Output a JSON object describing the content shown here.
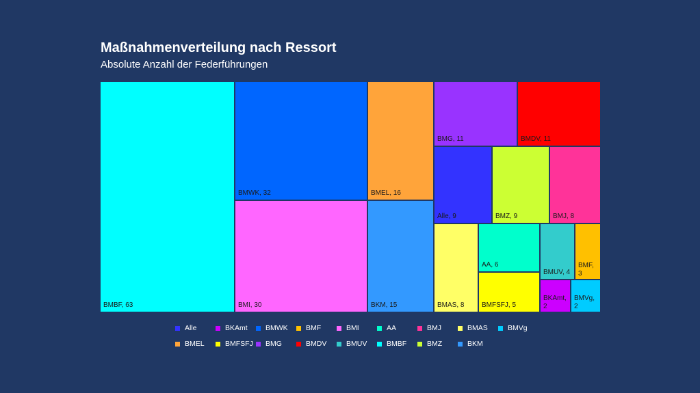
{
  "chart_data": {
    "type": "treemap",
    "title": "Maßnahmenverteilung nach Ressort",
    "subtitle": "Absolute Anzahl der Federführungen",
    "items": [
      {
        "name": "BMBF",
        "value": 63,
        "color": "#00FFFF"
      },
      {
        "name": "BMWK",
        "value": 32,
        "color": "#0066FF"
      },
      {
        "name": "BMI",
        "value": 30,
        "color": "#FF66FF"
      },
      {
        "name": "BMEL",
        "value": 16,
        "color": "#FFA43A"
      },
      {
        "name": "BKM",
        "value": 15,
        "color": "#3399FF"
      },
      {
        "name": "BMG",
        "value": 11,
        "color": "#9933FF"
      },
      {
        "name": "BMDV",
        "value": 11,
        "color": "#FF0000"
      },
      {
        "name": "Alle",
        "value": 9,
        "color": "#3333FF"
      },
      {
        "name": "BMZ",
        "value": 9,
        "color": "#CCFF33"
      },
      {
        "name": "BMJ",
        "value": 8,
        "color": "#FF3399"
      },
      {
        "name": "BMAS",
        "value": 8,
        "color": "#FFFF66"
      },
      {
        "name": "AA",
        "value": 6,
        "color": "#00FFCC"
      },
      {
        "name": "BMFSFJ",
        "value": 5,
        "color": "#FFFF00"
      },
      {
        "name": "BMUV",
        "value": 4,
        "color": "#33CCCC"
      },
      {
        "name": "BMF",
        "value": 3,
        "color": "#FFC000"
      },
      {
        "name": "BKAmt",
        "value": 2,
        "color": "#CC00FF"
      },
      {
        "name": "BMVg",
        "value": 2,
        "color": "#00CCFF"
      }
    ],
    "legend": {
      "placement": "bottom",
      "entries": [
        {
          "name": "Alle",
          "color": "#3333FF"
        },
        {
          "name": "BKAmt",
          "color": "#CC00FF"
        },
        {
          "name": "BMWK",
          "color": "#0066FF"
        },
        {
          "name": "BMF",
          "color": "#FFC000"
        },
        {
          "name": "BMI",
          "color": "#FF66FF"
        },
        {
          "name": "AA",
          "color": "#00FFCC"
        },
        {
          "name": "BMJ",
          "color": "#FF3399"
        },
        {
          "name": "BMAS",
          "color": "#FFFF66"
        },
        {
          "name": "BMVg",
          "color": "#00CCFF"
        },
        {
          "name": "BMEL",
          "color": "#FFA43A"
        },
        {
          "name": "BMFSFJ",
          "color": "#FFFF00"
        },
        {
          "name": "BMG",
          "color": "#9933FF"
        },
        {
          "name": "BMDV",
          "color": "#FF0000"
        },
        {
          "name": "BMUV",
          "color": "#33CCCC"
        },
        {
          "name": "BMBF",
          "color": "#00FFFF"
        },
        {
          "name": "BMZ",
          "color": "#CCFF33"
        },
        {
          "name": "BKM",
          "color": "#3399FF"
        }
      ]
    }
  }
}
